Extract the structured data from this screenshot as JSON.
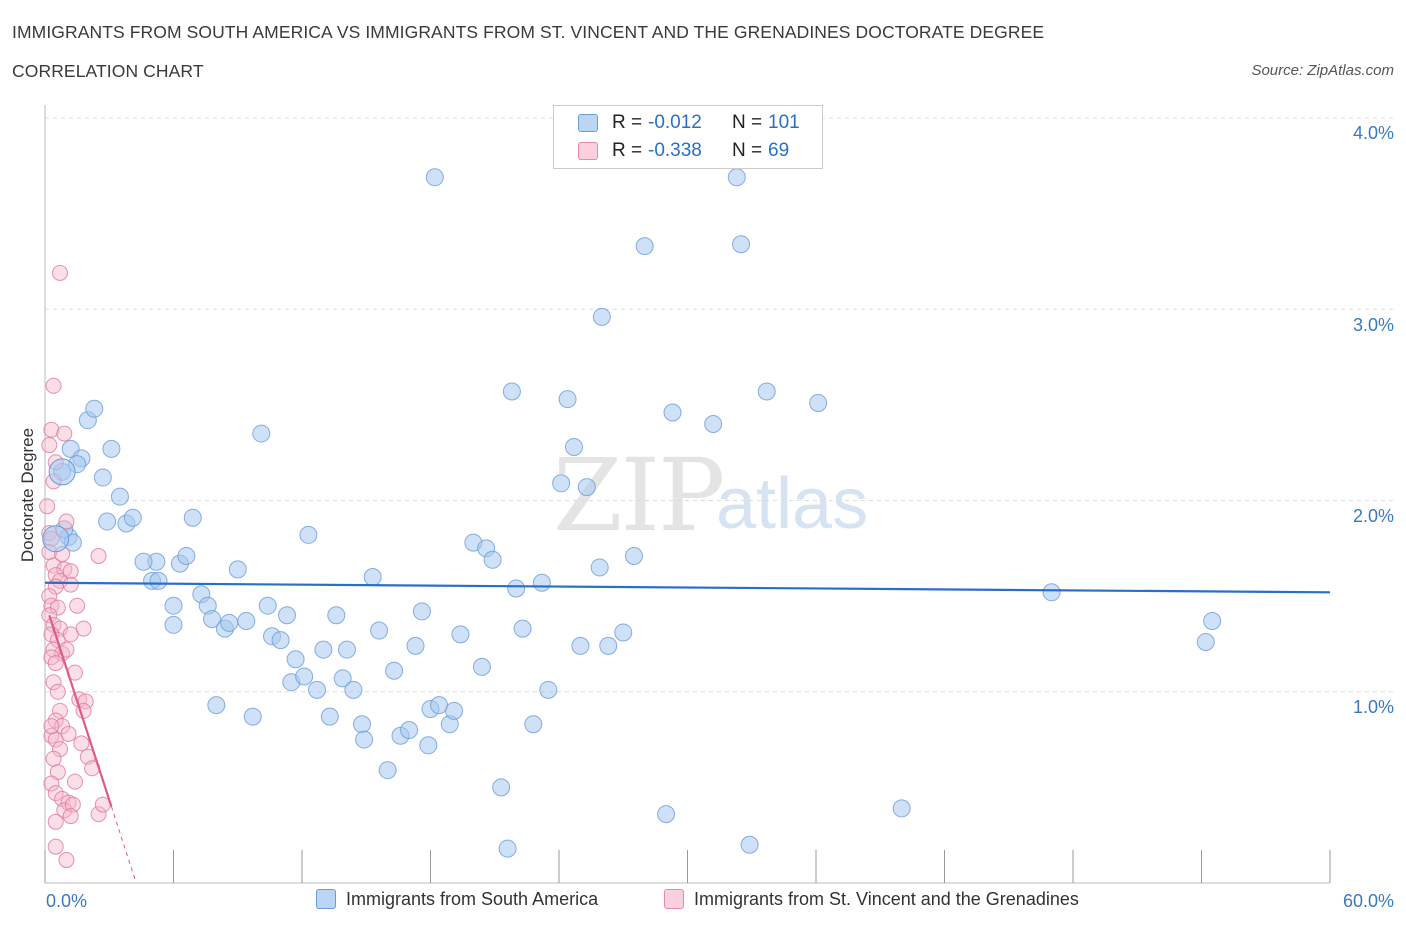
{
  "header": {
    "title_line1": "IMMIGRANTS FROM SOUTH AMERICA VS IMMIGRANTS FROM ST. VINCENT AND THE GRENADINES DOCTORATE DEGREE",
    "title_line2": "CORRELATION CHART",
    "source": "Source: ZipAtlas.com"
  },
  "watermark": {
    "zip": "ZIP",
    "atlas": "atlas"
  },
  "stats_legend": [
    {
      "r_label": "R =",
      "r_value": "-0.012",
      "n_label": "N =",
      "n_value": "101",
      "color": "#a8c8f0"
    },
    {
      "r_label": "R =",
      "r_value": "-0.338",
      "n_label": "N =",
      "n_value": "69",
      "color": "#f5b8cc"
    }
  ],
  "chart_data": {
    "type": "scatter",
    "title": "IMMIGRANTS FROM SOUTH AMERICA VS IMMIGRANTS FROM ST. VINCENT AND THE GRENADINES DOCTORATE DEGREE CORRELATION CHART",
    "ylabel": "Doctorate Degree",
    "xlabel": "",
    "xlim": [
      0,
      60
    ],
    "ylim": [
      0,
      4.0
    ],
    "x_tick_labels": [
      "0.0%",
      "60.0%"
    ],
    "y_tick_values": [
      1.0,
      2.0,
      3.0,
      4.0
    ],
    "y_tick_labels": [
      "1.0%",
      "2.0%",
      "3.0%",
      "4.0%"
    ],
    "grid": "horizontal dashed",
    "legend_position": "bottom",
    "series": [
      {
        "name": "Immigrants from South America",
        "color": "#a8c8f0",
        "stroke": "#6b9bd8",
        "trend": {
          "x": [
            0,
            60
          ],
          "y": [
            1.57,
            1.52
          ],
          "color": "#2a6fc7"
        },
        "points": [
          [
            0.8,
            2.15
          ],
          [
            1.2,
            2.27
          ],
          [
            1.7,
            2.22
          ],
          [
            2.0,
            2.42
          ],
          [
            2.3,
            2.48
          ],
          [
            3.1,
            2.27
          ],
          [
            3.5,
            2.02
          ],
          [
            2.9,
            1.89
          ],
          [
            3.8,
            1.88
          ],
          [
            4.1,
            1.91
          ],
          [
            5.2,
            1.68
          ],
          [
            5.0,
            1.58
          ],
          [
            5.3,
            1.58
          ],
          [
            6.0,
            1.45
          ],
          [
            6.0,
            1.35
          ],
          [
            6.3,
            1.67
          ],
          [
            6.6,
            1.71
          ],
          [
            6.9,
            1.91
          ],
          [
            7.3,
            1.51
          ],
          [
            7.6,
            1.45
          ],
          [
            7.8,
            1.38
          ],
          [
            8.4,
            1.33
          ],
          [
            8.6,
            1.36
          ],
          [
            9.0,
            1.64
          ],
          [
            9.4,
            1.37
          ],
          [
            10.1,
            2.35
          ],
          [
            10.4,
            1.45
          ],
          [
            10.6,
            1.29
          ],
          [
            11.0,
            1.27
          ],
          [
            11.3,
            1.4
          ],
          [
            11.5,
            1.05
          ],
          [
            11.7,
            1.17
          ],
          [
            12.1,
            1.08
          ],
          [
            12.3,
            1.82
          ],
          [
            12.7,
            1.01
          ],
          [
            13.0,
            1.22
          ],
          [
            13.3,
            0.87
          ],
          [
            13.6,
            1.4
          ],
          [
            13.9,
            1.07
          ],
          [
            14.1,
            1.22
          ],
          [
            14.4,
            1.01
          ],
          [
            14.8,
            0.83
          ],
          [
            14.9,
            0.75
          ],
          [
            15.3,
            1.6
          ],
          [
            15.6,
            1.32
          ],
          [
            16.0,
            0.59
          ],
          [
            16.3,
            1.11
          ],
          [
            16.6,
            0.77
          ],
          [
            17.0,
            0.8
          ],
          [
            17.3,
            1.24
          ],
          [
            17.6,
            1.42
          ],
          [
            17.9,
            0.72
          ],
          [
            18.0,
            0.91
          ],
          [
            18.2,
            3.69
          ],
          [
            18.4,
            0.93
          ],
          [
            18.9,
            0.83
          ],
          [
            19.1,
            0.9
          ],
          [
            19.4,
            1.3
          ],
          [
            20.0,
            1.78
          ],
          [
            20.4,
            1.13
          ],
          [
            20.6,
            1.75
          ],
          [
            20.9,
            1.69
          ],
          [
            21.3,
            0.5
          ],
          [
            21.6,
            0.18
          ],
          [
            21.8,
            2.57
          ],
          [
            22.0,
            1.54
          ],
          [
            22.3,
            1.33
          ],
          [
            22.8,
            0.83
          ],
          [
            23.2,
            1.57
          ],
          [
            23.5,
            1.01
          ],
          [
            24.1,
            2.09
          ],
          [
            24.4,
            2.53
          ],
          [
            24.7,
            2.28
          ],
          [
            25.0,
            1.24
          ],
          [
            25.3,
            2.07
          ],
          [
            25.9,
            1.65
          ],
          [
            26.0,
            2.96
          ],
          [
            26.3,
            1.24
          ],
          [
            27.0,
            1.31
          ],
          [
            27.5,
            1.71
          ],
          [
            28.0,
            3.33
          ],
          [
            29.0,
            0.36
          ],
          [
            29.3,
            2.46
          ],
          [
            31.2,
            2.4
          ],
          [
            32.3,
            3.69
          ],
          [
            32.5,
            3.34
          ],
          [
            32.9,
            0.2
          ],
          [
            33.7,
            2.57
          ],
          [
            36.1,
            2.51
          ],
          [
            40.0,
            0.39
          ],
          [
            1.1,
            1.81
          ],
          [
            1.3,
            1.78
          ],
          [
            2.7,
            2.12
          ],
          [
            4.6,
            1.68
          ],
          [
            8.0,
            0.93
          ],
          [
            9.7,
            0.87
          ],
          [
            47.0,
            1.52
          ],
          [
            54.5,
            1.37
          ],
          [
            54.2,
            1.26
          ],
          [
            1.5,
            2.19
          ],
          [
            0.9,
            1.85
          ]
        ]
      },
      {
        "name": "Immigrants from St. Vincent and the Grenadines",
        "color": "#f5b8cc",
        "stroke": "#e07898",
        "trend": {
          "x": [
            0.2,
            3.1
          ],
          "y": [
            1.4,
            0.4
          ],
          "dash_x": [
            3.1,
            4.2
          ],
          "dash_y": [
            0.4,
            0.02
          ],
          "color": "#e05a8a"
        },
        "points": [
          [
            0.7,
            3.19
          ],
          [
            0.3,
            2.37
          ],
          [
            0.9,
            2.35
          ],
          [
            0.2,
            2.29
          ],
          [
            0.5,
            2.2
          ],
          [
            0.4,
            2.1
          ],
          [
            0.1,
            1.97
          ],
          [
            1.0,
            1.89
          ],
          [
            0.2,
            1.83
          ],
          [
            0.3,
            1.8
          ],
          [
            0.2,
            1.73
          ],
          [
            2.5,
            1.71
          ],
          [
            0.4,
            1.66
          ],
          [
            0.9,
            1.64
          ],
          [
            1.2,
            1.63
          ],
          [
            0.5,
            1.61
          ],
          [
            0.7,
            1.58
          ],
          [
            0.5,
            1.55
          ],
          [
            1.2,
            1.56
          ],
          [
            0.2,
            1.5
          ],
          [
            0.3,
            1.45
          ],
          [
            0.6,
            1.44
          ],
          [
            0.2,
            1.4
          ],
          [
            0.4,
            1.35
          ],
          [
            0.7,
            1.33
          ],
          [
            1.8,
            1.33
          ],
          [
            0.3,
            1.3
          ],
          [
            0.6,
            1.27
          ],
          [
            0.4,
            1.22
          ],
          [
            0.8,
            1.2
          ],
          [
            1.0,
            1.22
          ],
          [
            0.3,
            1.18
          ],
          [
            0.5,
            1.15
          ],
          [
            1.4,
            1.1
          ],
          [
            0.4,
            1.05
          ],
          [
            1.6,
            0.96
          ],
          [
            0.7,
            0.9
          ],
          [
            1.9,
            0.95
          ],
          [
            0.5,
            0.85
          ],
          [
            0.8,
            0.82
          ],
          [
            0.3,
            0.77
          ],
          [
            0.5,
            0.75
          ],
          [
            0.7,
            0.7
          ],
          [
            1.1,
            0.78
          ],
          [
            1.7,
            0.73
          ],
          [
            0.4,
            0.65
          ],
          [
            2.0,
            0.66
          ],
          [
            0.6,
            0.58
          ],
          [
            0.3,
            0.52
          ],
          [
            1.4,
            0.53
          ],
          [
            0.5,
            0.47
          ],
          [
            0.8,
            0.44
          ],
          [
            1.1,
            0.42
          ],
          [
            0.9,
            0.38
          ],
          [
            1.3,
            0.41
          ],
          [
            0.5,
            0.32
          ],
          [
            1.2,
            0.35
          ],
          [
            2.5,
            0.36
          ],
          [
            2.7,
            0.41
          ],
          [
            0.5,
            0.19
          ],
          [
            1.0,
            0.12
          ],
          [
            0.3,
            0.82
          ],
          [
            0.6,
            1.0
          ],
          [
            1.5,
            1.45
          ],
          [
            0.8,
            1.72
          ],
          [
            2.2,
            0.6
          ],
          [
            1.8,
            0.9
          ],
          [
            0.4,
            2.6
          ],
          [
            1.2,
            1.3
          ]
        ]
      }
    ]
  },
  "axes": {
    "ylabel": "Doctorate Degree",
    "x_left": "0.0%",
    "x_right": "60.0%",
    "y_ticks": [
      "4.0%",
      "3.0%",
      "2.0%",
      "1.0%"
    ]
  },
  "bottom_legend": [
    {
      "label": "Immigrants from South America",
      "color": "#a8c8f0",
      "stroke": "#6b9bd8"
    },
    {
      "label": "Immigrants from St. Vincent and the Grenadines",
      "color": "#f5b8cc",
      "stroke": "#e07898"
    }
  ]
}
